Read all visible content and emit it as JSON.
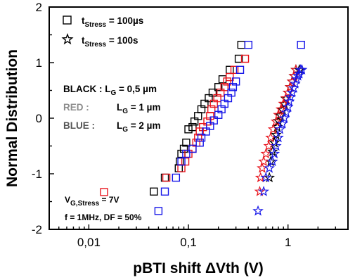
{
  "chart_data": {
    "type": "scatter",
    "xlabel": "pBTI shift  ΔVth (V)",
    "ylabel": "Normal Distribution",
    "xscale": "log",
    "xlim": [
      0.004,
      4
    ],
    "ylim": [
      -2,
      2
    ],
    "xticks": [
      {
        "value": 0.01,
        "label": "0,01"
      },
      {
        "value": 0.1,
        "label": "0,1"
      },
      {
        "value": 1,
        "label": "1"
      }
    ],
    "yticks": [
      {
        "value": -2,
        "label": "-2"
      },
      {
        "value": -1,
        "label": "-1"
      },
      {
        "value": 0,
        "label": "0"
      },
      {
        "value": 1,
        "label": "1"
      },
      {
        "value": 2,
        "label": "2"
      }
    ],
    "colors": {
      "black": "#000000",
      "red": "#e8141c",
      "blue": "#1414e8",
      "gray": "#8c8c8c",
      "dark_gray": "#555555"
    },
    "series": [
      {
        "marker": "square",
        "color": "#000000",
        "x": [
          0.045,
          0.058,
          0.08,
          0.082,
          0.085,
          0.09,
          0.095,
          0.1,
          0.11,
          0.115,
          0.125,
          0.135,
          0.145,
          0.16,
          0.175,
          0.2,
          0.22,
          0.26,
          0.32,
          0.34
        ],
        "y": [
          -1.32,
          -1.07,
          -0.9,
          -0.78,
          -0.64,
          -0.55,
          -0.44,
          -0.2,
          -0.16,
          -0.06,
          0.04,
          0.16,
          0.26,
          0.36,
          0.46,
          0.56,
          0.7,
          0.87,
          1.07,
          1.32
        ]
      },
      {
        "marker": "square",
        "color": "#e8141c",
        "x": [
          0.06,
          0.085,
          0.093,
          0.1,
          0.11,
          0.12,
          0.125,
          0.13,
          0.14,
          0.155,
          0.165,
          0.17,
          0.18,
          0.195,
          0.21,
          0.23,
          0.245,
          0.26,
          0.29,
          0.37
        ],
        "y": [
          -1.07,
          -0.9,
          -0.78,
          -0.64,
          -0.55,
          -0.44,
          -0.35,
          -0.24,
          -0.16,
          -0.06,
          0.04,
          0.16,
          0.26,
          0.36,
          0.46,
          0.56,
          0.66,
          0.74,
          0.87,
          1.07
        ]
      },
      {
        "marker": "square",
        "color": "#1414e8",
        "x": [
          0.05,
          0.058,
          0.075,
          0.085,
          0.095,
          0.11,
          0.13,
          0.135,
          0.15,
          0.165,
          0.18,
          0.2,
          0.215,
          0.23,
          0.25,
          0.27,
          0.28,
          0.3,
          0.33,
          0.4
        ],
        "y": [
          -1.67,
          -1.32,
          -1.07,
          -0.78,
          -0.64,
          -0.55,
          -0.44,
          -0.35,
          -0.24,
          -0.14,
          -0.04,
          0.06,
          0.16,
          0.26,
          0.36,
          0.46,
          0.56,
          0.66,
          0.87,
          1.32
        ]
      },
      {
        "marker": "star",
        "color": "#000000",
        "x": [
          0.65,
          0.67,
          0.7,
          0.73,
          0.76,
          0.78,
          0.8,
          0.84,
          0.88,
          0.92,
          0.95,
          1.0,
          1.05,
          1.1,
          1.15,
          1.2,
          1.3
        ],
        "y": [
          -1.07,
          -0.78,
          -0.6,
          -0.44,
          -0.3,
          -0.16,
          -0.05,
          0.05,
          0.15,
          0.25,
          0.35,
          0.46,
          0.56,
          0.66,
          0.76,
          0.87,
          0.87
        ]
      },
      {
        "marker": "star",
        "color": "#e8141c",
        "x": [
          0.52,
          0.53,
          0.55,
          0.57,
          0.6,
          0.64,
          0.67,
          0.71,
          0.76,
          0.8,
          0.85,
          0.9,
          0.95,
          1.0,
          1.05,
          1.1,
          1.15,
          1.2
        ],
        "y": [
          -1.32,
          -1.07,
          -0.9,
          -0.78,
          -0.64,
          -0.5,
          -0.35,
          -0.2,
          -0.06,
          0.06,
          0.16,
          0.26,
          0.36,
          0.46,
          0.56,
          0.66,
          0.76,
          0.87
        ]
      },
      {
        "marker": "star",
        "color": "#1414e8",
        "x": [
          0.5,
          0.57,
          0.6,
          0.65,
          0.7,
          0.73,
          0.76,
          0.8,
          0.83,
          0.88,
          0.92,
          0.96,
          1.0,
          1.03,
          1.06,
          1.1,
          1.14,
          1.18,
          1.22,
          1.26,
          1.3,
          1.34,
          1.38
        ],
        "y": [
          -1.67,
          -1.32,
          -1.07,
          -0.9,
          -0.78,
          -0.64,
          -0.5,
          -0.35,
          -0.2,
          -0.1,
          0.0,
          0.1,
          0.2,
          0.3,
          0.38,
          0.46,
          0.54,
          0.62,
          0.7,
          0.76,
          0.8,
          0.87,
          0.87
        ]
      },
      {
        "marker": "square",
        "color": "#1414e8",
        "x": [
          1.35
        ],
        "y": [
          1.32
        ]
      }
    ]
  },
  "legend": {
    "entries": [
      {
        "marker": "square",
        "prefix": "t",
        "sub": "Stress",
        "value": " = 100µs"
      },
      {
        "marker": "star",
        "prefix": "t",
        "sub": "Stress",
        "value": " = 100s"
      }
    ]
  },
  "annotations": {
    "black_label": "BLACK : L",
    "black_sub": "G",
    "black_value": " = 0,5 µm",
    "red_label": "RED :",
    "red_l": "L",
    "red_sub": "G",
    "red_value": " = 1 µm",
    "blue_label": "BLUE :",
    "blue_l": "L",
    "blue_sub": "G",
    "blue_value": " = 2 µm",
    "vg_label": "V",
    "vg_sub": "G,Stress",
    "vg_value": " = 7V",
    "freq": "f = 1MHz, DF = 50%"
  }
}
